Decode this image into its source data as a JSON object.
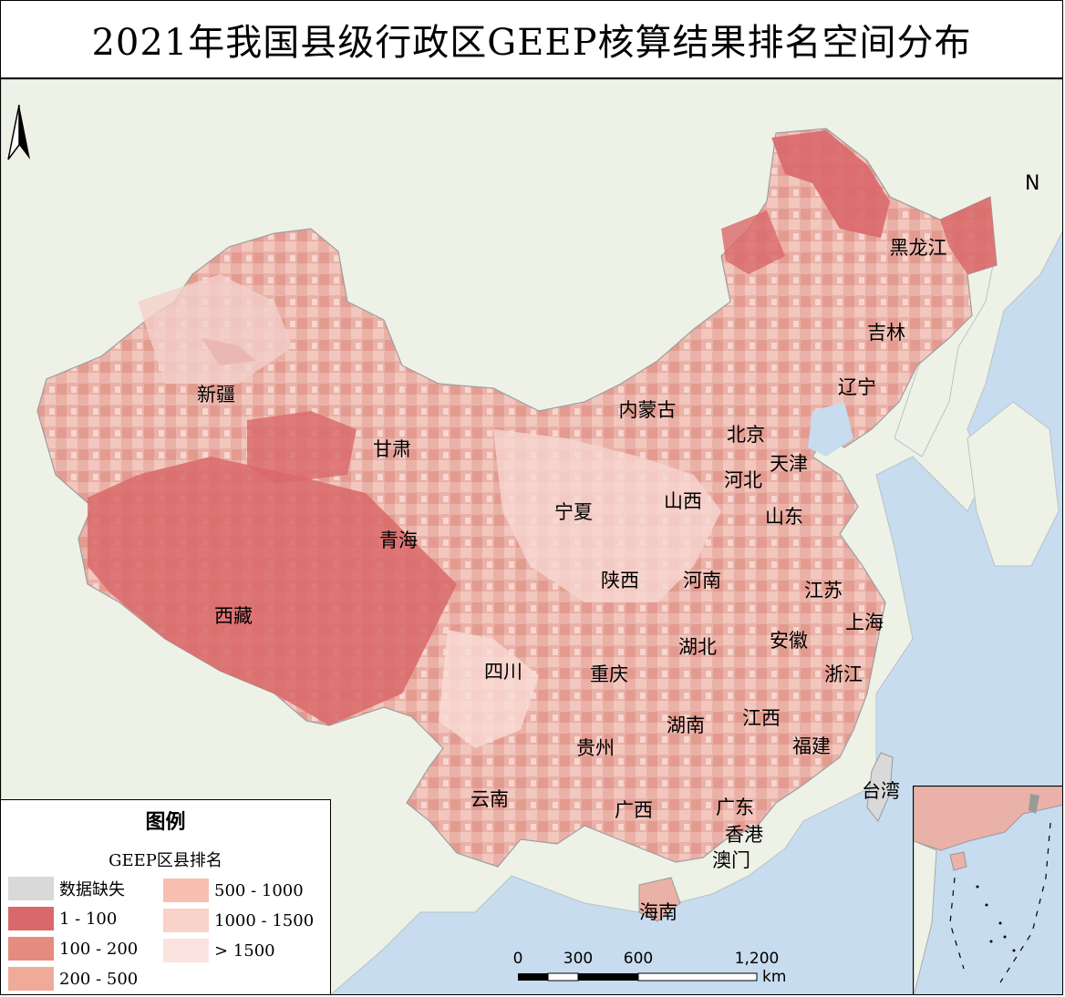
{
  "title": "2021年我国县级行政区GEEP核算结果排名空间分布",
  "north_arrow": "N",
  "provinces": [
    {
      "name": "黑龙江"
    },
    {
      "name": "吉林"
    },
    {
      "name": "辽宁"
    },
    {
      "name": "内蒙古"
    },
    {
      "name": "北京"
    },
    {
      "name": "天津"
    },
    {
      "name": "河北"
    },
    {
      "name": "山西"
    },
    {
      "name": "山东"
    },
    {
      "name": "新疆"
    },
    {
      "name": "甘肃"
    },
    {
      "name": "宁夏"
    },
    {
      "name": "青海"
    },
    {
      "name": "陕西"
    },
    {
      "name": "河南"
    },
    {
      "name": "江苏"
    },
    {
      "name": "上海"
    },
    {
      "name": "安徽"
    },
    {
      "name": "湖北"
    },
    {
      "name": "西藏"
    },
    {
      "name": "四川"
    },
    {
      "name": "重庆"
    },
    {
      "name": "浙江"
    },
    {
      "name": "江西"
    },
    {
      "name": "湖南"
    },
    {
      "name": "福建"
    },
    {
      "name": "贵州"
    },
    {
      "name": "台湾"
    },
    {
      "name": "云南"
    },
    {
      "name": "广西"
    },
    {
      "name": "广东"
    },
    {
      "name": "香港"
    },
    {
      "name": "澳门"
    },
    {
      "name": "海南"
    }
  ],
  "scale_bar": {
    "ticks": [
      "0",
      "300",
      "600",
      "1,200"
    ],
    "unit": "km"
  },
  "legend": {
    "title": "图例",
    "subtitle": "GEEP区县排名",
    "items": [
      {
        "label": "数据缺失",
        "color": "#d9d9d9"
      },
      {
        "label": "1 - 100",
        "color": "#d9686a"
      },
      {
        "label": "100 - 200",
        "color": "#e48c7f"
      },
      {
        "label": "200 - 500",
        "color": "#f0ab98"
      },
      {
        "label": "500 - 1000",
        "color": "#f7bfb0"
      },
      {
        "label": "1000 - 1500",
        "color": "#f9d2c9"
      },
      {
        "label": "> 1500",
        "color": "#fbe3df"
      }
    ]
  },
  "colors": {
    "sea": "#c7dcee",
    "neighbor_land": "#eef2e6",
    "china_base": "#eab1a8"
  }
}
